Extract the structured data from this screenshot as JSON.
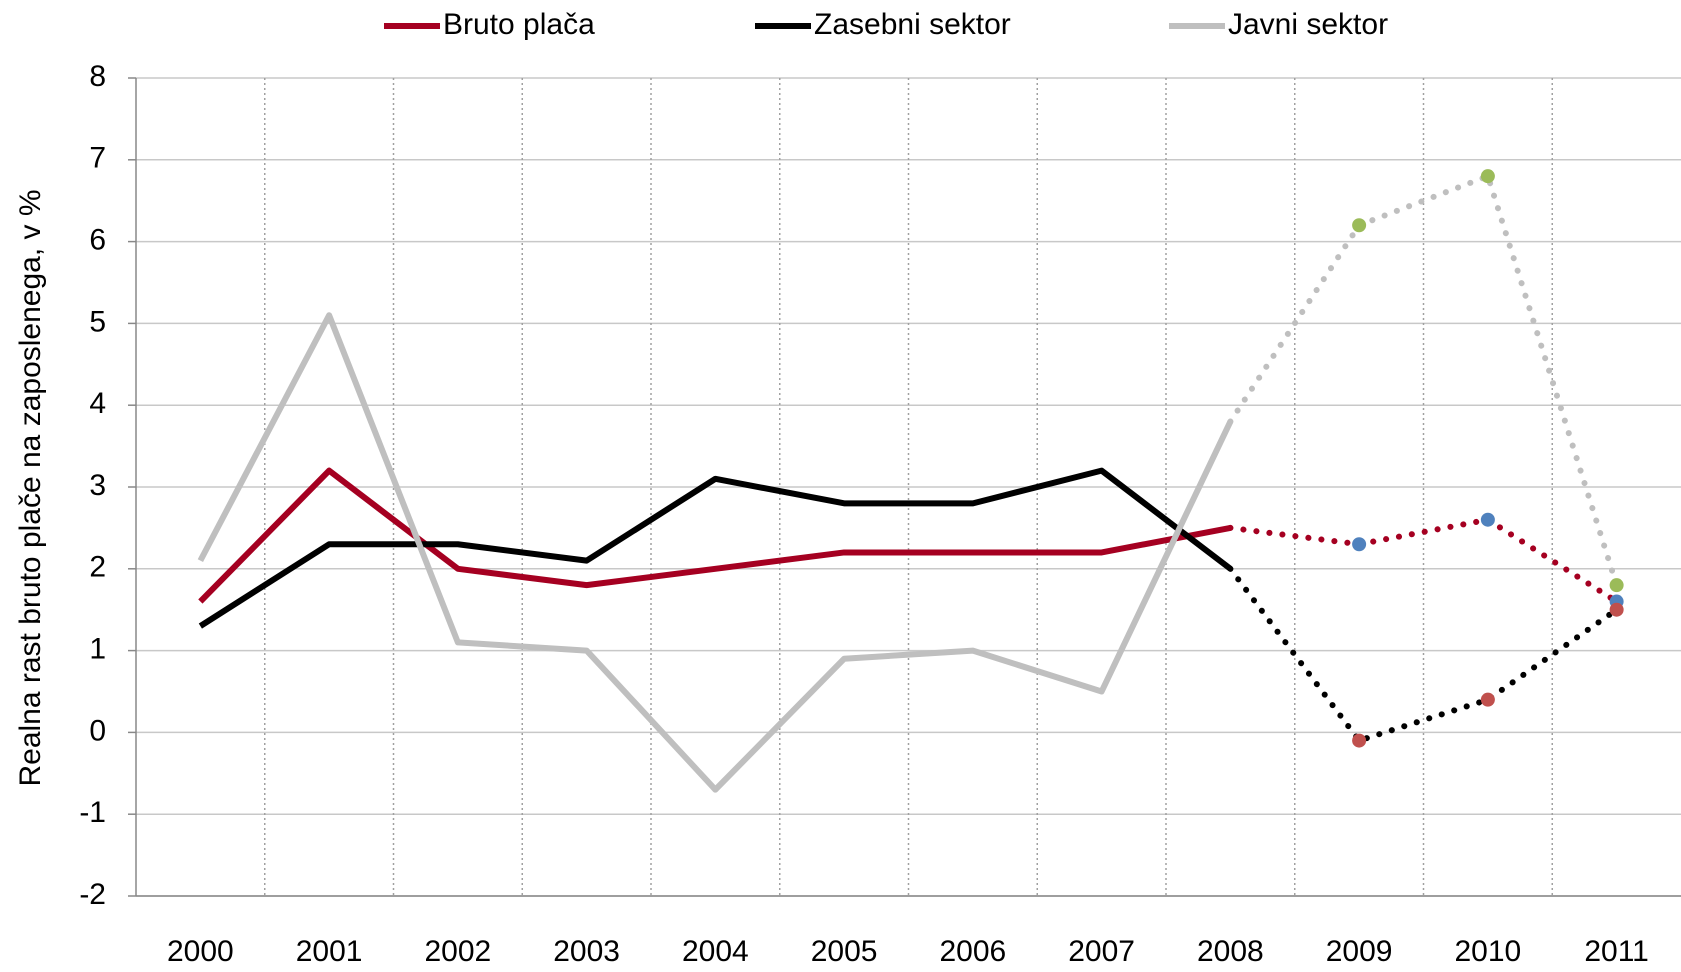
{
  "chart_data": {
    "type": "line",
    "y_label": "Realna rast bruto plače na zaposlenega, v %",
    "categories": [
      "2000",
      "2001",
      "2002",
      "2003",
      "2004",
      "2005",
      "2006",
      "2007",
      "2008",
      "2009",
      "2010",
      "2011"
    ],
    "series": [
      {
        "name": "Bruto plača",
        "color": "#a50021",
        "marker_color": "#4f81bd",
        "values": [
          1.6,
          3.2,
          2.0,
          1.8,
          2.0,
          2.2,
          2.2,
          2.2,
          2.5,
          2.3,
          2.6,
          1.6
        ]
      },
      {
        "name": "Zasebni sektor",
        "color": "#000000",
        "marker_color": "#c0504d",
        "values": [
          1.3,
          2.3,
          2.3,
          2.1,
          3.1,
          2.8,
          2.8,
          3.2,
          2.0,
          -0.1,
          0.4,
          1.5
        ]
      },
      {
        "name": "Javni sektor",
        "color": "#bfbfbf",
        "marker_color": "#9bbb59",
        "values": [
          2.1,
          5.1,
          1.1,
          1.0,
          -0.7,
          0.9,
          1.0,
          0.5,
          3.8,
          6.2,
          6.8,
          1.8
        ]
      }
    ],
    "dotted_from": "2008",
    "ylim": [
      -2,
      8
    ],
    "yticks": [
      -2,
      -1,
      0,
      1,
      2,
      3,
      4,
      5,
      6,
      7,
      8
    ],
    "grid": true,
    "legend": "top"
  }
}
